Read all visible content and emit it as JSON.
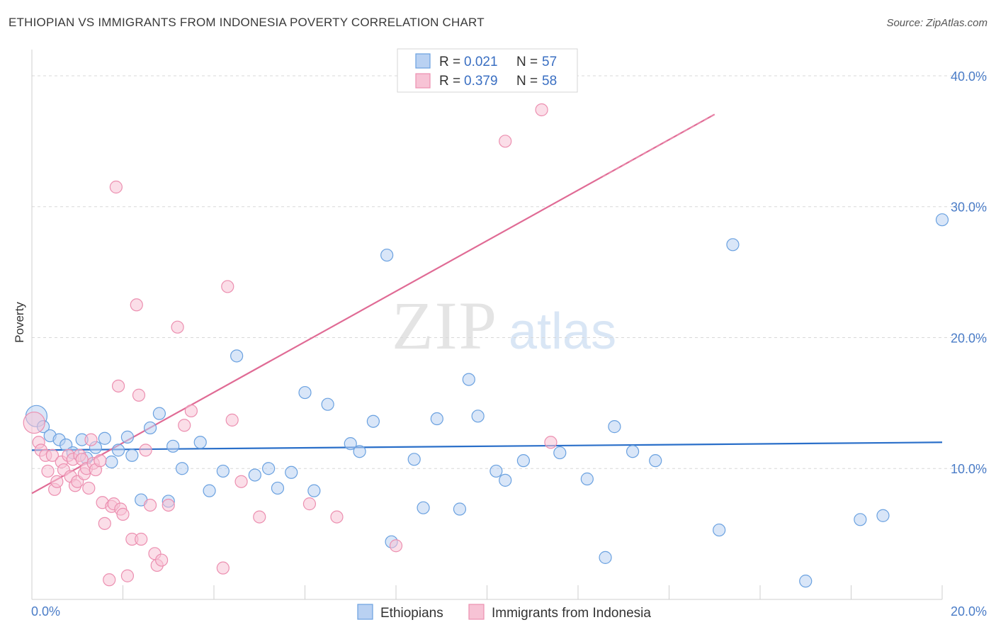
{
  "title": "ETHIOPIAN VS IMMIGRANTS FROM INDONESIA POVERTY CORRELATION CHART",
  "source": "Source: ZipAtlas.com",
  "watermark": {
    "zip": "ZIP",
    "atlas": "atlas"
  },
  "colors": {
    "blue": "#6aa1e0",
    "blue_fill": "#b9d1f2",
    "blue_line": "#2a6fc9",
    "pink": "#ec8fb0",
    "pink_fill": "#f7c3d5",
    "pink_line": "#e06b95",
    "grid": "#d8d8d8",
    "axis_text": "#4a7cc7"
  },
  "legend": {
    "series1": {
      "r_label": "R =",
      "r_value": "0.021",
      "n_label": "N =",
      "n_value": "57"
    },
    "series2": {
      "r_label": "R =",
      "r_value": "0.379",
      "n_label": "N =",
      "n_value": "58"
    }
  },
  "chart_data": {
    "type": "scatter",
    "title": "ETHIOPIAN VS IMMIGRANTS FROM INDONESIA POVERTY CORRELATION CHART",
    "xlabel": "",
    "ylabel": "Poverty",
    "xlim": [
      0,
      20
    ],
    "ylim": [
      0,
      42
    ],
    "x_tick_labels": [
      "0.0%",
      "20.0%"
    ],
    "y_ticks": [
      10,
      20,
      30,
      40
    ],
    "y_tick_labels": [
      "10.0%",
      "20.0%",
      "30.0%",
      "40.0%"
    ],
    "series": [
      {
        "name": "Ethiopians",
        "trend": {
          "x0": 0,
          "y0": 11.4,
          "x1": 20,
          "y1": 12.0,
          "dashed_from": null
        },
        "points": [
          [
            0.1,
            14.0
          ],
          [
            0.25,
            13.2
          ],
          [
            0.4,
            12.5
          ],
          [
            0.6,
            12.2
          ],
          [
            0.75,
            11.8
          ],
          [
            0.9,
            11.2
          ],
          [
            1.1,
            12.2
          ],
          [
            1.2,
            10.8
          ],
          [
            1.4,
            11.6
          ],
          [
            1.6,
            12.3
          ],
          [
            1.75,
            10.5
          ],
          [
            1.9,
            11.4
          ],
          [
            2.1,
            12.4
          ],
          [
            2.2,
            11.0
          ],
          [
            2.4,
            7.6
          ],
          [
            2.6,
            13.1
          ],
          [
            2.8,
            14.2
          ],
          [
            3.0,
            7.5
          ],
          [
            3.1,
            11.7
          ],
          [
            3.3,
            10.0
          ],
          [
            3.7,
            12.0
          ],
          [
            3.9,
            8.3
          ],
          [
            4.2,
            9.8
          ],
          [
            4.5,
            18.6
          ],
          [
            4.9,
            9.5
          ],
          [
            5.2,
            10.0
          ],
          [
            5.4,
            8.5
          ],
          [
            5.7,
            9.7
          ],
          [
            6.0,
            15.8
          ],
          [
            6.2,
            8.3
          ],
          [
            6.5,
            14.9
          ],
          [
            7.0,
            11.9
          ],
          [
            7.2,
            11.3
          ],
          [
            7.5,
            13.6
          ],
          [
            7.8,
            26.3
          ],
          [
            7.9,
            4.4
          ],
          [
            8.4,
            10.7
          ],
          [
            8.6,
            7.0
          ],
          [
            8.9,
            13.8
          ],
          [
            9.4,
            6.9
          ],
          [
            9.6,
            16.8
          ],
          [
            9.8,
            14.0
          ],
          [
            10.2,
            9.8
          ],
          [
            10.4,
            9.1
          ],
          [
            10.8,
            10.6
          ],
          [
            11.6,
            11.2
          ],
          [
            12.2,
            9.2
          ],
          [
            12.6,
            3.2
          ],
          [
            12.8,
            13.2
          ],
          [
            13.2,
            11.3
          ],
          [
            13.7,
            10.6
          ],
          [
            15.1,
            5.3
          ],
          [
            15.4,
            27.1
          ],
          [
            17.0,
            1.4
          ],
          [
            18.2,
            6.1
          ],
          [
            18.7,
            6.4
          ],
          [
            20.0,
            29.0
          ]
        ]
      },
      {
        "name": "Immigrants from Indonesia",
        "trend": {
          "x0": 0,
          "y0": 8.1,
          "x1": 20,
          "y1": 46.7,
          "dashed_from": 15.0
        },
        "points": [
          [
            0.05,
            13.5
          ],
          [
            0.15,
            12.0
          ],
          [
            0.2,
            11.4
          ],
          [
            0.3,
            11.0
          ],
          [
            0.35,
            9.8
          ],
          [
            0.45,
            11.0
          ],
          [
            0.5,
            8.4
          ],
          [
            0.55,
            9.0
          ],
          [
            0.65,
            10.5
          ],
          [
            0.7,
            9.9
          ],
          [
            0.8,
            11.0
          ],
          [
            0.85,
            9.4
          ],
          [
            0.9,
            10.7
          ],
          [
            0.95,
            8.7
          ],
          [
            1.0,
            9.0
          ],
          [
            1.05,
            11.0
          ],
          [
            1.1,
            10.7
          ],
          [
            1.15,
            9.6
          ],
          [
            1.2,
            10.0
          ],
          [
            1.25,
            8.5
          ],
          [
            1.3,
            12.2
          ],
          [
            1.35,
            10.4
          ],
          [
            1.4,
            9.9
          ],
          [
            1.5,
            10.6
          ],
          [
            1.55,
            7.4
          ],
          [
            1.6,
            5.8
          ],
          [
            1.7,
            1.5
          ],
          [
            1.75,
            7.1
          ],
          [
            1.8,
            7.3
          ],
          [
            1.85,
            31.5
          ],
          [
            1.9,
            16.3
          ],
          [
            1.95,
            6.9
          ],
          [
            2.0,
            6.5
          ],
          [
            2.1,
            1.8
          ],
          [
            2.2,
            4.6
          ],
          [
            2.3,
            22.5
          ],
          [
            2.35,
            15.6
          ],
          [
            2.4,
            4.6
          ],
          [
            2.5,
            11.4
          ],
          [
            2.6,
            7.2
          ],
          [
            2.7,
            3.5
          ],
          [
            2.75,
            2.6
          ],
          [
            2.85,
            3.0
          ],
          [
            3.0,
            7.2
          ],
          [
            3.2,
            20.8
          ],
          [
            3.35,
            13.3
          ],
          [
            3.5,
            14.4
          ],
          [
            4.2,
            2.4
          ],
          [
            4.3,
            23.9
          ],
          [
            4.4,
            13.7
          ],
          [
            4.6,
            9.0
          ],
          [
            5.0,
            6.3
          ],
          [
            6.1,
            7.3
          ],
          [
            6.7,
            6.3
          ],
          [
            8.0,
            4.1
          ],
          [
            10.4,
            35.0
          ],
          [
            11.2,
            37.4
          ],
          [
            11.4,
            12.0
          ]
        ]
      }
    ]
  }
}
